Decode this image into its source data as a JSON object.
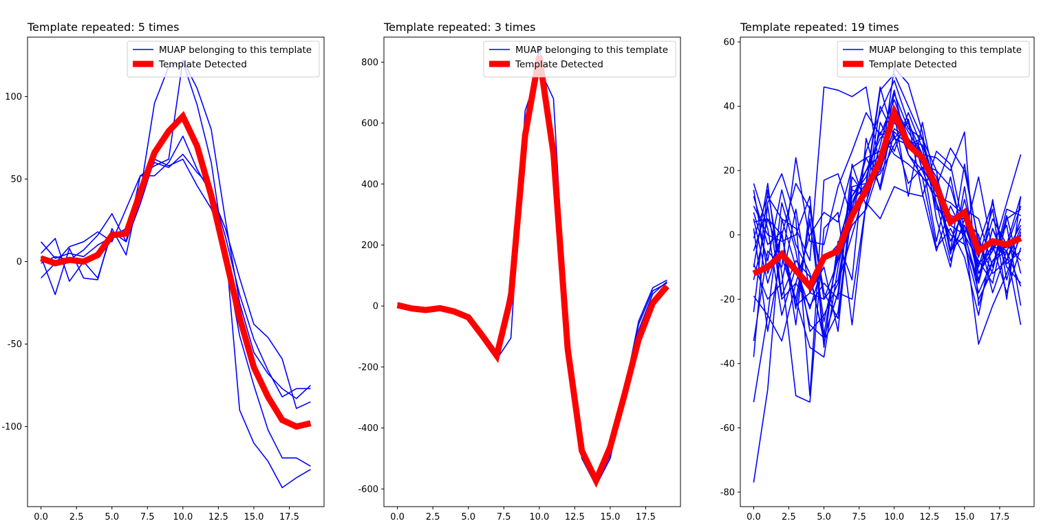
{
  "chart_data": [
    {
      "type": "line",
      "title": "Template repeated: 5 times",
      "xlabel": "",
      "ylabel": "",
      "xlim": [
        -0.95,
        19.95
      ],
      "ylim": [
        -148.5,
        136
      ],
      "xticks": [
        0.0,
        2.5,
        5.0,
        7.5,
        10.0,
        12.5,
        15.0,
        17.5
      ],
      "xtick_labels": [
        "0.0",
        "2.5",
        "5.0",
        "7.5",
        "10.0",
        "12.5",
        "15.0",
        "17.5"
      ],
      "yticks": [
        -100,
        -50,
        0,
        50,
        100
      ],
      "ytick_labels": [
        "-100",
        "-50",
        "0",
        "50",
        "100"
      ],
      "grid": false,
      "legend_position": "top-right",
      "legend": [
        "MUAP belonging to this template",
        "Template Detected"
      ],
      "x": [
        0,
        1,
        2,
        3,
        4,
        5,
        6,
        7,
        8,
        9,
        10,
        11,
        12,
        13,
        14,
        15,
        16,
        17,
        18,
        19
      ],
      "series": [
        {
          "name": "MUAP belonging to this template",
          "color": "#0000ff",
          "values": [
            12,
            2,
            5,
            3,
            10,
            15,
            20,
            42,
            96,
            118,
            121,
            95,
            60,
            2,
            -45,
            -75,
            -102,
            -119,
            -119,
            -124
          ]
        },
        {
          "values": [
            5,
            14,
            -12,
            0,
            -10,
            18,
            12,
            35,
            62,
            58,
            62,
            46,
            32,
            10,
            -90,
            -110,
            -121,
            -137,
            -131,
            -126
          ]
        },
        {
          "values": [
            -10,
            -1,
            9,
            12,
            18,
            12,
            32,
            52,
            52,
            60,
            76,
            56,
            41,
            20,
            -10,
            -38,
            -46,
            -59,
            -89,
            -85
          ]
        },
        {
          "values": [
            3,
            -20,
            8,
            -10,
            -11,
            20,
            4,
            45,
            60,
            57,
            65,
            54,
            45,
            15,
            -20,
            -47,
            -66,
            -82,
            -77,
            -77
          ]
        },
        {
          "values": [
            -1,
            3,
            1,
            7,
            16,
            29,
            12,
            52,
            58,
            62,
            122,
            105,
            80,
            25,
            -25,
            -55,
            -68,
            -77,
            -83,
            -75
          ]
        },
        {
          "name": "Template Detected",
          "color": "#ff0000",
          "values": [
            2,
            -1,
            1,
            0,
            4,
            16,
            17,
            42,
            66,
            79,
            88,
            70,
            40,
            3,
            -34,
            -64,
            -82,
            -96,
            -100,
            -98
          ]
        }
      ]
    },
    {
      "type": "line",
      "title": "Template repeated: 3 times",
      "xlabel": "",
      "ylabel": "",
      "xlim": [
        -0.95,
        19.95
      ],
      "ylim": [
        -658,
        882
      ],
      "xticks": [
        0.0,
        2.5,
        5.0,
        7.5,
        10.0,
        12.5,
        15.0,
        17.5
      ],
      "xtick_labels": [
        "0.0",
        "2.5",
        "5.0",
        "7.5",
        "10.0",
        "12.5",
        "15.0",
        "17.5"
      ],
      "yticks": [
        -600,
        -400,
        -200,
        0,
        200,
        400,
        600,
        800
      ],
      "ytick_labels": [
        "-600",
        "-400",
        "-200",
        "0",
        "200",
        "400",
        "600",
        "800"
      ],
      "grid": false,
      "legend_position": "top-right",
      "legend": [
        "MUAP belonging to this template",
        "Template Detected"
      ],
      "x": [
        0,
        1,
        2,
        3,
        4,
        5,
        6,
        7,
        8,
        9,
        10,
        11,
        12,
        13,
        14,
        15,
        16,
        17,
        18,
        19
      ],
      "series": [
        {
          "name": "MUAP belonging to this template",
          "color": "#0000ff",
          "values": [
            10,
            -5,
            -10,
            -5,
            -15,
            -30,
            -95,
            -175,
            -105,
            640,
            780,
            680,
            -120,
            -500,
            -590,
            -500,
            -280,
            -50,
            60,
            85
          ]
        },
        {
          "values": [
            0,
            -8,
            -15,
            -8,
            -20,
            -40,
            -100,
            -160,
            20,
            540,
            850,
            500,
            -150,
            -470,
            -580,
            -480,
            -300,
            -80,
            40,
            80
          ]
        },
        {
          "values": [
            5,
            -10,
            -12,
            -8,
            -18,
            -35,
            -98,
            -165,
            80,
            600,
            810,
            520,
            -130,
            -480,
            -585,
            -490,
            -290,
            -60,
            50,
            75
          ]
        },
        {
          "name": "Template Detected",
          "color": "#ff0000",
          "values": [
            3,
            -8,
            -13,
            -7,
            -18,
            -37,
            -98,
            -163,
            30,
            560,
            820,
            500,
            -140,
            -475,
            -572,
            -462,
            -292,
            -110,
            10,
            65
          ]
        }
      ]
    },
    {
      "type": "line",
      "title": "Template repeated: 19 times",
      "xlabel": "",
      "ylabel": "",
      "xlim": [
        -0.95,
        19.95
      ],
      "ylim": [
        -84.5,
        61.5
      ],
      "xticks": [
        0.0,
        2.5,
        5.0,
        7.5,
        10.0,
        12.5,
        15.0,
        17.5
      ],
      "xtick_labels": [
        "0.0",
        "2.5",
        "5.0",
        "7.5",
        "10.0",
        "12.5",
        "15.0",
        "17.5"
      ],
      "yticks": [
        -80,
        -60,
        -40,
        -20,
        0,
        20,
        40,
        60
      ],
      "ytick_labels": [
        "-80",
        "-60",
        "-40",
        "-20",
        "0",
        "20",
        "40",
        "60"
      ],
      "grid": false,
      "legend_position": "top-right",
      "legend": [
        "MUAP belonging to this template",
        "Template Detected"
      ],
      "x": [
        0,
        1,
        2,
        3,
        4,
        5,
        6,
        7,
        8,
        9,
        10,
        11,
        12,
        13,
        14,
        15,
        16,
        17,
        18,
        19
      ],
      "series": [
        {
          "name": "MUAP belonging to this template",
          "color": "#0000ff",
          "values": [
            -77,
            -48,
            5,
            2,
            -8,
            46,
            45,
            43,
            46,
            20,
            52,
            47,
            32,
            5,
            -10,
            15,
            -12,
            -5,
            10,
            25
          ]
        },
        {
          "values": [
            -52,
            -25,
            10,
            -5,
            -30,
            -25,
            -15,
            0,
            15,
            45,
            50,
            40,
            30,
            10,
            -8,
            5,
            0,
            -18,
            -5,
            -28
          ]
        },
        {
          "values": [
            -38,
            10,
            19,
            5,
            -50,
            17,
            19,
            5,
            26,
            38,
            48,
            35,
            25,
            15,
            -5,
            3,
            -10,
            5,
            -3,
            12
          ]
        },
        {
          "values": [
            -33,
            -5,
            -10,
            24,
            -2,
            -3,
            15,
            26,
            38,
            31,
            42,
            30,
            22,
            20,
            -5,
            0,
            -8,
            -15,
            5,
            8
          ]
        },
        {
          "values": [
            -24,
            14,
            -12,
            -50,
            -52,
            2,
            7,
            -28,
            10,
            24,
            37,
            25,
            20,
            10,
            0,
            -3,
            -15,
            2,
            -10,
            -15
          ]
        },
        {
          "values": [
            -19,
            -25,
            -33,
            -15,
            0,
            7,
            4,
            21,
            24,
            26,
            40,
            32,
            25,
            18,
            5,
            5,
            -12,
            -3,
            -18,
            -4
          ]
        },
        {
          "values": [
            -14,
            5,
            -7,
            -20,
            -35,
            -38,
            -10,
            10,
            20,
            30,
            35,
            29,
            28,
            15,
            27,
            20,
            -2,
            -12,
            -8,
            2
          ]
        },
        {
          "values": [
            -9,
            -20,
            -15,
            8,
            -18,
            -10,
            -30,
            15,
            16,
            46,
            30,
            28,
            30,
            20,
            15,
            0,
            18,
            -5,
            3,
            -22
          ]
        },
        {
          "values": [
            -5,
            9,
            -20,
            -15,
            -22,
            -15,
            -20,
            18,
            12,
            28,
            45,
            25,
            18,
            12,
            10,
            6,
            -14,
            2,
            -8,
            5
          ]
        },
        {
          "values": [
            -1,
            12,
            5,
            -10,
            -28,
            -32,
            -18,
            22,
            9,
            35,
            26,
            38,
            27,
            8,
            6,
            5,
            -9,
            -4,
            -4,
            9
          ]
        },
        {
          "values": [
            2,
            -30,
            -5,
            -20,
            4,
            -27,
            -7,
            5,
            14,
            20,
            33,
            30,
            25,
            24,
            20,
            32,
            -22,
            -8,
            -5,
            3
          ]
        },
        {
          "values": [
            4,
            5,
            0,
            16,
            8,
            -20,
            -14,
            12,
            20,
            25,
            30,
            35,
            13,
            -5,
            9,
            0,
            -34,
            -22,
            -12,
            0
          ]
        },
        {
          "values": [
            7,
            -8,
            14,
            -3,
            -12,
            -33,
            -24,
            10,
            16,
            19,
            28,
            36,
            20,
            16,
            -6,
            11,
            -7,
            8,
            -20,
            12
          ]
        },
        {
          "values": [
            9,
            0,
            -2,
            0,
            12,
            -35,
            -2,
            -14,
            30,
            14,
            32,
            28,
            23,
            -2,
            18,
            -3,
            -20,
            -11,
            6,
            -12
          ]
        },
        {
          "values": [
            12,
            -3,
            1,
            -28,
            9,
            -18,
            -26,
            8,
            24,
            15,
            38,
            12,
            35,
            14,
            -5,
            22,
            -3,
            10,
            -9,
            -5
          ]
        },
        {
          "values": [
            14,
            -12,
            0,
            -23,
            5,
            -31,
            -5,
            14,
            12,
            40,
            31,
            16,
            21,
            13,
            -2,
            8,
            5,
            -10,
            8,
            6
          ]
        },
        {
          "values": [
            -10,
            16,
            -19,
            -8,
            -13,
            -32,
            -18,
            -20,
            10,
            5,
            15,
            13,
            12,
            26,
            22,
            1,
            -18,
            -8,
            -3,
            -8
          ]
        },
        {
          "values": [
            5,
            -15,
            0,
            -22,
            -18,
            -20,
            -8,
            3,
            8,
            22,
            44,
            33,
            30,
            14,
            3,
            0,
            -15,
            11,
            -14,
            1
          ]
        },
        {
          "values": [
            16,
            2,
            -25,
            -10,
            -23,
            -8,
            -3,
            12,
            18,
            32,
            25,
            22,
            18,
            -4,
            2,
            -7,
            -25,
            -2,
            -5,
            -16
          ]
        },
        {
          "name": "Template Detected",
          "color": "#ff0000",
          "values": [
            -12,
            -10,
            -6,
            -11,
            -16,
            -7,
            -5,
            6,
            14,
            23,
            38,
            28,
            24,
            15,
            4,
            7,
            -5,
            -2,
            -3,
            -1
          ]
        }
      ]
    }
  ]
}
